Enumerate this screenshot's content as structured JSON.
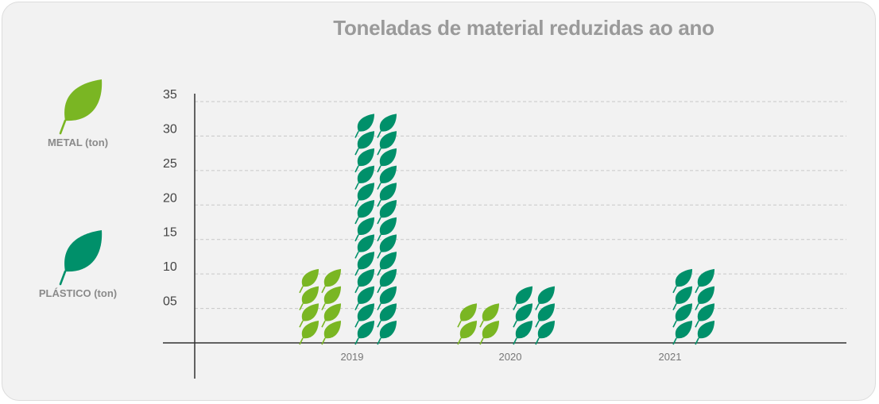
{
  "chart_data": {
    "type": "bar",
    "title": "Toneladas de material reduzidas ao ano",
    "categories": [
      "2019",
      "2020",
      "2021"
    ],
    "series": [
      {
        "name": "METAL (ton)",
        "color": "#7ab623",
        "values": [
          10,
          5,
          0
        ]
      },
      {
        "name": "PLÁSTICO (ton)",
        "color": "#00906a",
        "values": [
          33,
          7.5,
          10
        ]
      }
    ],
    "yticks": [
      "35",
      "30",
      "25",
      "20",
      "15",
      "10",
      "05"
    ],
    "ylim": [
      0,
      35
    ],
    "grid": true,
    "legend_position": "left",
    "icon": "leaf-icon"
  }
}
